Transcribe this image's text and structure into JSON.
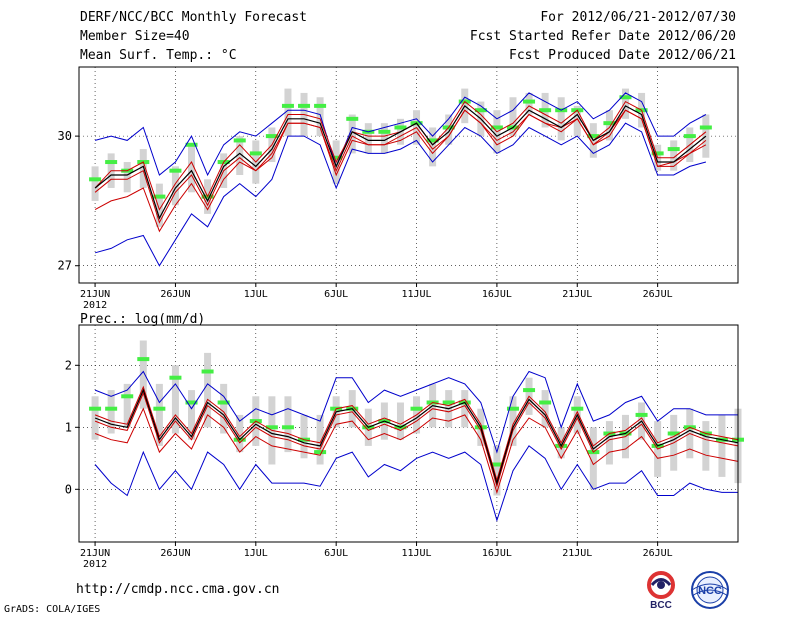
{
  "header": {
    "title": "DERF/NCC/BCC Monthly Forecast",
    "member_size": "Member Size=40",
    "variable": "Mean Surf. Temp.: °C",
    "period": "For 2012/06/21-2012/07/30",
    "started": "Fcst Started Refer Date 2012/06/20",
    "produced": "Fcst Produced Date 2012/06/21"
  },
  "footer": {
    "url": "http://cmdp.ncc.cma.gov.cn",
    "grads": "GrADS: COLA/IGES",
    "logo1_text": "BCC",
    "logo2_text": "NCC"
  },
  "colors": {
    "mean": "#000000",
    "spread": "#0000cc",
    "lower": "#cc0000",
    "median": "#44ee44",
    "box": "#d3d3d3",
    "grid": "#000000"
  },
  "chart_data": [
    {
      "type": "line",
      "title": "Mean Surf. Temp.: °C",
      "year_label": "2012",
      "x_tick_labels": [
        "21JUN",
        "26JUN",
        "1JUL",
        "6JUL",
        "11JUL",
        "16JUL",
        "21JUL",
        "26JUL"
      ],
      "x_tick_days": [
        1,
        6,
        11,
        16,
        21,
        26,
        31,
        36
      ],
      "xlim": [
        0,
        41
      ],
      "ylim": [
        26.6,
        31.6
      ],
      "y_ticks": [
        27,
        30
      ],
      "series": [
        {
          "name": "upper",
          "values": [
            29.9,
            30.0,
            29.9,
            30.2,
            29.1,
            29.4,
            30.0,
            29.1,
            29.8,
            30.1,
            30.0,
            30.3,
            30.6,
            30.6,
            30.5,
            29.3,
            30.2,
            30.1,
            30.2,
            30.3,
            30.4,
            30.0,
            30.4,
            30.9,
            30.7,
            30.4,
            30.6,
            31.0,
            30.8,
            30.6,
            30.8,
            30.4,
            30.6,
            31.0,
            30.8,
            30.0,
            30.0,
            30.3,
            30.5
          ]
        },
        {
          "name": "box_top",
          "values": [
            29.3,
            29.6,
            29.4,
            29.7,
            28.9,
            29.3,
            29.8,
            29.0,
            29.6,
            30.0,
            29.9,
            30.2,
            31.1,
            31.0,
            30.9,
            29.9,
            30.5,
            30.3,
            30.3,
            30.4,
            30.6,
            30.2,
            30.5,
            31.1,
            30.8,
            30.6,
            30.9,
            31.0,
            31.0,
            30.9,
            30.7,
            30.3,
            30.6,
            31.1,
            31.0,
            29.8,
            29.9,
            30.2,
            30.5
          ]
        },
        {
          "name": "box_bottom",
          "values": [
            28.5,
            28.8,
            28.7,
            28.8,
            27.9,
            28.4,
            28.7,
            28.2,
            28.8,
            29.1,
            28.9,
            29.4,
            30.0,
            30.0,
            30.0,
            28.9,
            29.6,
            29.6,
            29.6,
            29.8,
            29.8,
            29.3,
            29.8,
            30.3,
            30.0,
            29.6,
            30.0,
            30.5,
            30.2,
            29.9,
            30.0,
            29.5,
            29.9,
            30.4,
            30.2,
            29.2,
            29.2,
            29.4,
            29.5
          ]
        },
        {
          "name": "median",
          "values": [
            29.0,
            29.4,
            29.2,
            29.4,
            28.6,
            29.2,
            29.8,
            28.6,
            29.4,
            29.9,
            29.6,
            30.0,
            30.7,
            30.7,
            30.7,
            29.5,
            30.4,
            30.1,
            30.1,
            30.2,
            30.3,
            29.9,
            30.2,
            30.8,
            30.6,
            30.2,
            30.2,
            30.8,
            30.6,
            30.6,
            30.6,
            30.0,
            30.3,
            30.9,
            30.6,
            29.6,
            29.7,
            30.0,
            30.2
          ]
        },
        {
          "name": "mean",
          "values": [
            28.8,
            29.1,
            29.1,
            29.3,
            28.1,
            28.8,
            29.2,
            28.5,
            29.3,
            29.6,
            29.3,
            29.7,
            30.4,
            30.4,
            30.3,
            29.3,
            30.1,
            29.9,
            29.9,
            30.1,
            30.3,
            29.8,
            30.1,
            30.7,
            30.4,
            30.0,
            30.2,
            30.6,
            30.4,
            30.2,
            30.5,
            29.9,
            30.1,
            30.7,
            30.5,
            29.4,
            29.4,
            29.7,
            30.0
          ]
        },
        {
          "name": "ensemble_a",
          "values": [
            28.8,
            29.2,
            29.2,
            29.4,
            28.3,
            28.9,
            29.4,
            28.6,
            29.4,
            29.8,
            29.4,
            29.8,
            30.5,
            30.5,
            30.4,
            29.4,
            30.1,
            30.0,
            30.0,
            30.1,
            30.3,
            29.8,
            30.2,
            30.8,
            30.5,
            30.1,
            30.3,
            30.7,
            30.5,
            30.3,
            30.6,
            29.9,
            30.2,
            30.8,
            30.6,
            29.5,
            29.5,
            29.8,
            30.1
          ]
        },
        {
          "name": "ensemble_b",
          "values": [
            28.7,
            29.0,
            29.0,
            29.2,
            28.0,
            28.7,
            29.1,
            28.4,
            29.2,
            29.5,
            29.2,
            29.6,
            30.3,
            30.3,
            30.2,
            29.2,
            30.0,
            29.8,
            29.8,
            30.0,
            30.2,
            29.7,
            30.0,
            30.6,
            30.3,
            29.9,
            30.1,
            30.5,
            30.3,
            30.1,
            30.4,
            29.8,
            30.0,
            30.6,
            30.4,
            29.3,
            29.3,
            29.6,
            29.9
          ]
        },
        {
          "name": "lower_red",
          "values": [
            28.3,
            28.5,
            28.6,
            28.8,
            27.8,
            28.4,
            28.9,
            28.3,
            29.0,
            29.4,
            29.2,
            29.5,
            30.3,
            30.3,
            30.2,
            29.1,
            29.9,
            29.8,
            29.8,
            29.9,
            30.1,
            29.6,
            30.0,
            30.6,
            30.3,
            29.8,
            30.0,
            30.5,
            30.3,
            30.2,
            30.4,
            29.8,
            30.1,
            30.6,
            30.4,
            29.3,
            29.4,
            29.6,
            29.8
          ]
        },
        {
          "name": "lower",
          "values": [
            27.3,
            27.4,
            27.6,
            27.7,
            27.0,
            27.6,
            28.2,
            27.9,
            28.6,
            28.9,
            28.6,
            29.0,
            30.0,
            30.0,
            29.8,
            28.8,
            29.7,
            29.6,
            29.6,
            29.7,
            29.9,
            29.4,
            29.8,
            30.2,
            30.0,
            29.6,
            29.8,
            30.2,
            30.0,
            29.8,
            30.0,
            29.6,
            29.8,
            30.3,
            30.1,
            29.1,
            29.1,
            29.3,
            29.4
          ]
        }
      ]
    },
    {
      "type": "line",
      "title": "Prec.: log(mm/d)",
      "year_label": "2012",
      "x_tick_labels": [
        "21JUN",
        "26JUN",
        "1JUL",
        "6JUL",
        "11JUL",
        "16JUL",
        "21JUL",
        "26JUL"
      ],
      "x_tick_days": [
        1,
        6,
        11,
        16,
        21,
        26,
        31,
        36
      ],
      "xlim": [
        0,
        41
      ],
      "ylim": [
        -0.85,
        2.65
      ],
      "y_ticks": [
        0,
        1,
        2
      ],
      "series": [
        {
          "name": "upper",
          "values": [
            1.6,
            1.5,
            1.6,
            1.9,
            1.4,
            1.7,
            1.3,
            1.7,
            1.5,
            1.1,
            1.3,
            1.2,
            1.3,
            1.2,
            1.1,
            1.8,
            1.8,
            1.4,
            1.6,
            1.5,
            1.6,
            1.7,
            1.8,
            1.7,
            1.4,
            0.6,
            1.5,
            1.9,
            1.8,
            1.0,
            1.7,
            1.1,
            1.2,
            1.4,
            1.5,
            1.1,
            1.3,
            1.3,
            1.2,
            1.2,
            1.2
          ]
        },
        {
          "name": "box_top",
          "values": [
            1.5,
            1.6,
            1.7,
            2.4,
            1.7,
            2.0,
            1.6,
            2.2,
            1.7,
            1.2,
            1.5,
            1.5,
            1.5,
            1.2,
            1.2,
            1.5,
            1.6,
            1.3,
            1.4,
            1.4,
            1.5,
            1.7,
            1.6,
            1.6,
            1.3,
            0.7,
            1.5,
            1.8,
            1.6,
            1.0,
            1.5,
            1.0,
            1.1,
            1.2,
            1.4,
            1.1,
            1.2,
            1.3,
            1.1,
            1.2,
            1.3
          ]
        },
        {
          "name": "box_bottom",
          "values": [
            0.8,
            0.9,
            1.0,
            1.3,
            0.7,
            0.9,
            0.8,
            1.0,
            0.9,
            0.6,
            0.7,
            0.4,
            0.6,
            0.5,
            0.4,
            1.0,
            1.0,
            0.7,
            0.8,
            0.8,
            0.9,
            1.0,
            1.0,
            1.0,
            0.7,
            -0.1,
            0.7,
            1.2,
            1.0,
            0.5,
            0.9,
            0.0,
            0.4,
            0.5,
            0.8,
            0.2,
            0.3,
            0.5,
            0.3,
            0.2,
            0.1
          ]
        },
        {
          "name": "median",
          "values": [
            1.3,
            1.3,
            1.5,
            2.1,
            1.3,
            1.8,
            1.4,
            1.9,
            1.4,
            0.8,
            1.1,
            1.0,
            1.0,
            0.8,
            0.6,
            1.3,
            1.3,
            1.0,
            1.1,
            1.0,
            1.3,
            1.4,
            1.4,
            1.4,
            1.0,
            0.4,
            1.3,
            1.6,
            1.4,
            0.7,
            1.3,
            0.6,
            0.9,
            0.9,
            1.2,
            0.7,
            0.9,
            1.0,
            0.9,
            0.8,
            0.8
          ]
        },
        {
          "name": "mean",
          "values": [
            1.15,
            1.05,
            1.0,
            1.6,
            0.8,
            1.15,
            0.85,
            1.4,
            1.2,
            0.8,
            1.05,
            0.9,
            0.85,
            0.75,
            0.7,
            1.25,
            1.3,
            1.0,
            1.1,
            1.0,
            1.15,
            1.35,
            1.3,
            1.4,
            1.0,
            0.1,
            1.0,
            1.45,
            1.2,
            0.7,
            1.2,
            0.65,
            0.85,
            0.9,
            1.1,
            0.7,
            0.8,
            0.95,
            0.85,
            0.8,
            0.75
          ]
        },
        {
          "name": "ensemble_a",
          "values": [
            1.2,
            1.1,
            1.05,
            1.65,
            0.85,
            1.2,
            0.9,
            1.45,
            1.25,
            0.85,
            1.1,
            0.95,
            0.9,
            0.8,
            0.75,
            1.3,
            1.35,
            1.05,
            1.15,
            1.05,
            1.2,
            1.4,
            1.35,
            1.45,
            1.05,
            0.15,
            1.05,
            1.5,
            1.25,
            0.75,
            1.25,
            0.7,
            0.9,
            0.95,
            1.15,
            0.75,
            0.85,
            1.0,
            0.9,
            0.85,
            0.8
          ]
        },
        {
          "name": "ensemble_b",
          "values": [
            1.1,
            1.0,
            0.95,
            1.55,
            0.75,
            1.1,
            0.8,
            1.35,
            1.15,
            0.75,
            1.0,
            0.85,
            0.8,
            0.7,
            0.65,
            1.2,
            1.25,
            0.95,
            1.05,
            0.95,
            1.1,
            1.3,
            1.25,
            1.35,
            0.95,
            0.05,
            0.95,
            1.4,
            1.15,
            0.65,
            1.15,
            0.6,
            0.8,
            0.85,
            1.05,
            0.65,
            0.75,
            0.9,
            0.8,
            0.75,
            0.7
          ]
        },
        {
          "name": "lower_red",
          "values": [
            0.9,
            0.8,
            0.75,
            1.3,
            0.6,
            0.9,
            0.65,
            1.2,
            1.0,
            0.6,
            0.85,
            0.7,
            0.65,
            0.6,
            0.55,
            1.05,
            1.1,
            0.8,
            0.9,
            0.8,
            0.95,
            1.15,
            1.1,
            1.2,
            0.8,
            -0.05,
            0.8,
            1.15,
            1.0,
            0.5,
            0.95,
            0.4,
            0.6,
            0.65,
            0.85,
            0.5,
            0.55,
            0.65,
            0.55,
            0.5,
            0.45
          ]
        },
        {
          "name": "lower",
          "values": [
            0.4,
            0.1,
            -0.1,
            0.6,
            0.0,
            0.3,
            0.0,
            0.6,
            0.4,
            0.0,
            0.4,
            0.1,
            0.1,
            0.1,
            0.05,
            0.5,
            0.6,
            0.2,
            0.4,
            0.3,
            0.5,
            0.6,
            0.5,
            0.6,
            0.4,
            -0.5,
            0.3,
            0.7,
            0.5,
            0.0,
            0.4,
            0.0,
            0.1,
            0.1,
            0.3,
            -0.1,
            -0.1,
            0.1,
            0.0,
            -0.05,
            -0.05
          ]
        }
      ]
    }
  ]
}
